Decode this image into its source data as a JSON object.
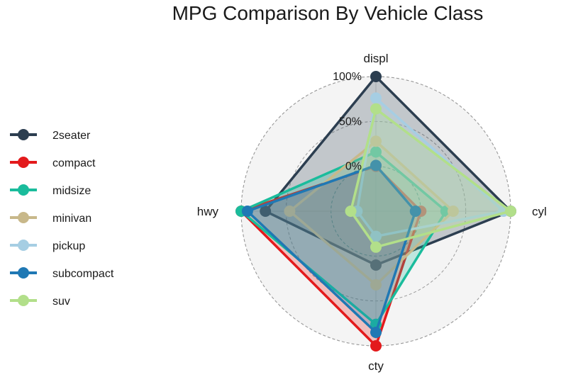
{
  "chart_data": {
    "type": "radar",
    "title": "MPG Comparison By Vehicle Class",
    "axes": [
      "displ",
      "cyl",
      "cty",
      "hwy"
    ],
    "grid_labels": [
      "0%",
      "50%",
      "100%"
    ],
    "grid_values": [
      0,
      0.5,
      1
    ],
    "range": [
      -0.5,
      1
    ],
    "legend_position": "left",
    "series": [
      {
        "name": "2seater",
        "color": "#2c3e50",
        "values": [
          1.0,
          1.0,
          0.1,
          0.73
        ]
      },
      {
        "name": "compact",
        "color": "#e31a1c",
        "values": [
          0.0,
          0.0,
          1.0,
          1.0
        ]
      },
      {
        "name": "midsize",
        "color": "#1abc9c",
        "values": [
          0.16,
          0.28,
          0.76,
          1.0
        ]
      },
      {
        "name": "minivan",
        "color": "#c8b88a",
        "values": [
          0.28,
          0.36,
          0.32,
          0.46
        ]
      },
      {
        "name": "pickup",
        "color": "#a6cee3",
        "values": [
          0.76,
          0.92,
          -0.22,
          -0.29
        ]
      },
      {
        "name": "subcompact",
        "color": "#1f78b4",
        "values": [
          0.01,
          -0.06,
          0.85,
          0.93
        ]
      },
      {
        "name": "suv",
        "color": "#b2df8a",
        "values": [
          0.64,
          1.0,
          -0.1,
          -0.22
        ]
      }
    ]
  }
}
